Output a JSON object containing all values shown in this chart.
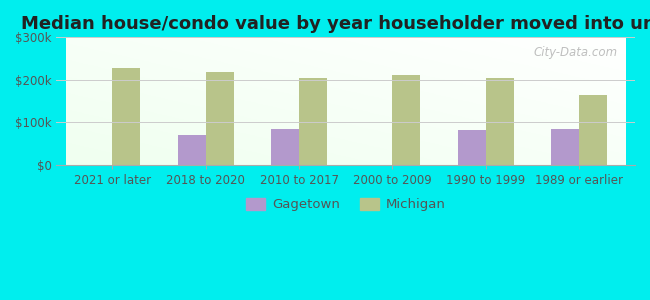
{
  "title": "Median house/condo value by year householder moved into unit",
  "categories": [
    "2021 or later",
    "2018 to 2020",
    "2010 to 2017",
    "2000 to 2009",
    "1990 to 1999",
    "1989 or earlier"
  ],
  "gagetown_values": [
    null,
    70000,
    85000,
    null,
    82000,
    85000
  ],
  "michigan_values": [
    227000,
    218000,
    203000,
    212000,
    205000,
    163000
  ],
  "gagetown_color": "#b399cc",
  "michigan_color": "#b8c48a",
  "background_color": "#00eeee",
  "ylim": [
    0,
    300000
  ],
  "yticks": [
    0,
    100000,
    200000,
    300000
  ],
  "ytick_labels": [
    "$0",
    "$100k",
    "$200k",
    "$300k"
  ],
  "watermark": "City-Data.com",
  "title_fontsize": 13,
  "tick_fontsize": 8.5,
  "legend_fontsize": 9.5,
  "bar_width": 0.3
}
